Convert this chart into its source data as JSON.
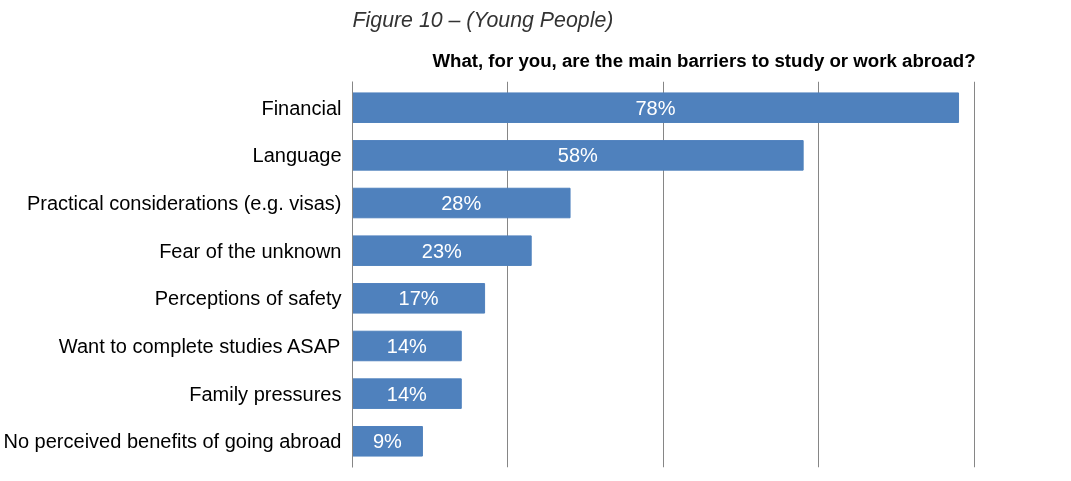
{
  "chart_data": {
    "type": "bar",
    "orientation": "horizontal",
    "title": "What, for you, are the main barriers to study or work abroad?",
    "annotations": [
      "Figure 10 – (Young People)"
    ],
    "categories": [
      "Financial",
      "Language",
      "Practical considerations (e.g. visas)",
      "Fear of the unknown",
      "Perceptions of safety",
      "Want to complete studies ASAP",
      "Family pressures",
      "No perceived benefits of going abroad"
    ],
    "values": [
      78,
      58,
      28,
      23,
      17,
      14,
      14,
      9
    ],
    "value_labels": [
      "78%",
      "58%",
      "28%",
      "23%",
      "17%",
      "14%",
      "14%",
      "9%"
    ],
    "color": "#4f81bd",
    "grid": "x",
    "tick_labels": "y"
  }
}
